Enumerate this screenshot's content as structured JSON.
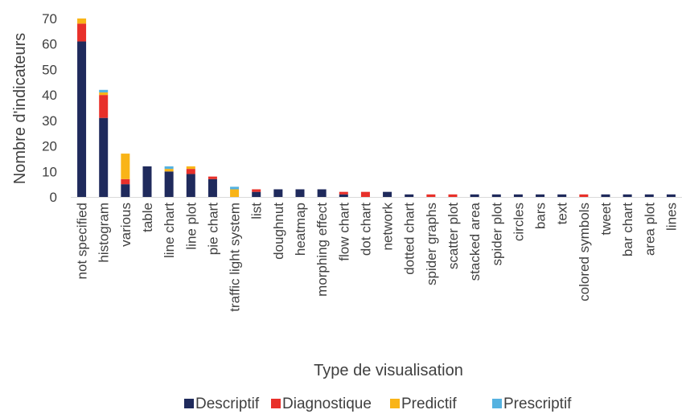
{
  "chart_data": {
    "type": "bar",
    "stacked": true,
    "title": "",
    "xlabel": "Type de visualisation",
    "ylabel": "Nombre d'indicateurs",
    "ylim": [
      0,
      70
    ],
    "yticks": [
      0,
      10,
      20,
      30,
      40,
      50,
      60,
      70
    ],
    "grid": false,
    "legend_position": "bottom",
    "categories": [
      "not specified",
      "histogram",
      "various",
      "table",
      "line chart",
      "line plot",
      "pie chart",
      "traffic light system",
      "list",
      "doughnut",
      "heatmap",
      "morphing effect",
      "flow chart",
      "dot chart",
      "network",
      "dotted chart",
      "spider graphs",
      "scatter plot",
      "stacked area",
      "spider plot",
      "circles",
      "bars",
      "text",
      "colored symbols",
      "tweet",
      "bar chart",
      "area plot",
      "lines"
    ],
    "series": [
      {
        "name": "Descriptif",
        "color": "#1f2a5c",
        "values": [
          61,
          31,
          5,
          12,
          10,
          9,
          7,
          0,
          2,
          3,
          3,
          3,
          1,
          0,
          2,
          1,
          0,
          0,
          1,
          1,
          1,
          1,
          1,
          0,
          1,
          1,
          1,
          1
        ]
      },
      {
        "name": "Diagnostique",
        "color": "#e8302a",
        "values": [
          7,
          9,
          2,
          0,
          0,
          2,
          1,
          0,
          1,
          0,
          0,
          0,
          1,
          2,
          0,
          0,
          1,
          1,
          0,
          0,
          0,
          0,
          0,
          1,
          0,
          0,
          0,
          0
        ]
      },
      {
        "name": "Predictif",
        "color": "#f9b417",
        "values": [
          2,
          1,
          10,
          0,
          1,
          1,
          0,
          3,
          0,
          0,
          0,
          0,
          0,
          0,
          0,
          0,
          0,
          0,
          0,
          0,
          0,
          0,
          0,
          0,
          0,
          0,
          0,
          0
        ]
      },
      {
        "name": "Prescriptif",
        "color": "#55b2e0",
        "values": [
          0,
          1,
          0,
          0,
          1,
          0,
          0,
          1,
          0,
          0,
          0,
          0,
          0,
          0,
          0,
          0,
          0,
          0,
          0,
          0,
          0,
          0,
          0,
          0,
          0,
          0,
          0,
          0
        ]
      }
    ]
  }
}
